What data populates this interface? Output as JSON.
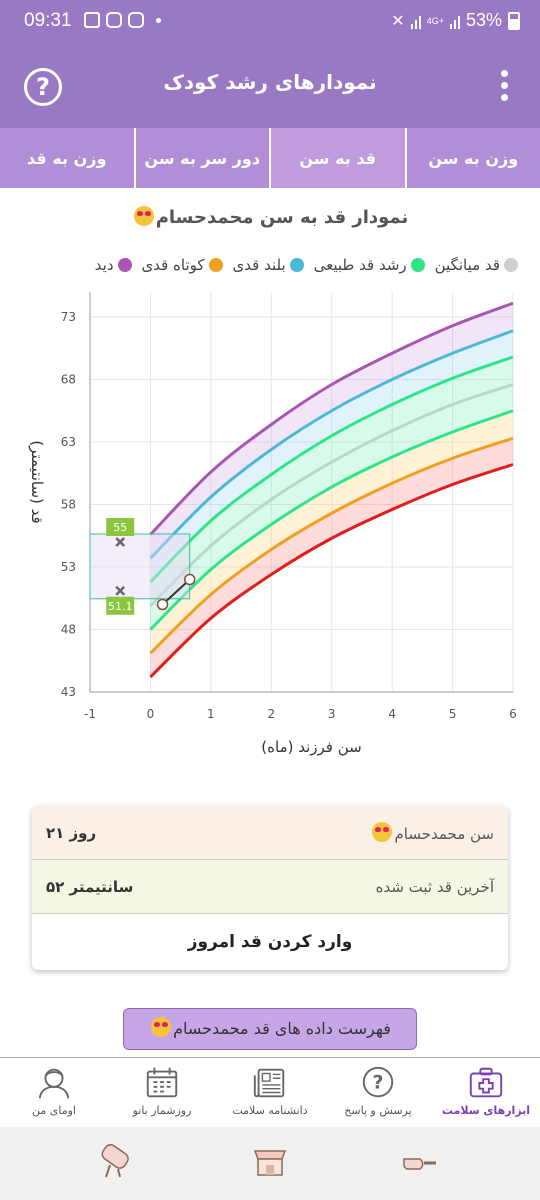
{
  "status": {
    "time": "09:31",
    "battery": "53%",
    "network": "4G+"
  },
  "appbar": {
    "title": "نمودارهای رشد کودک",
    "help_symbol": "?"
  },
  "tabs": [
    {
      "label": "وزن به سن"
    },
    {
      "label": "قد به سن",
      "active": true
    },
    {
      "label": "دور سر به سن"
    },
    {
      "label": "وزن به قد"
    }
  ],
  "chart_title": "نمودار قد به سن محمدحسام",
  "legend": [
    {
      "label": "دید",
      "color": "#a855b5"
    },
    {
      "label": "کوتاه قدی",
      "color": "#f0a020"
    },
    {
      "label": "بلند قدی",
      "color": "#4bb8d6"
    },
    {
      "label": "رشد قد طبیعی",
      "color": "#2ee58a"
    },
    {
      "label": "قد میانگین",
      "color": "#cfcfcf"
    }
  ],
  "chart_data": {
    "type": "line",
    "xlabel": "سن فرزند (ماه)",
    "ylabel": "قد (سانتیمتر)",
    "xlim": [
      -1,
      6
    ],
    "ylim": [
      43,
      75
    ],
    "xticks": [
      "-1",
      "0",
      "1",
      "2",
      "3",
      "4",
      "5",
      "6"
    ],
    "yticks": [
      "43",
      "48",
      "53",
      "58",
      "63",
      "68",
      "73"
    ],
    "x": [
      0,
      1,
      2,
      3,
      4,
      5,
      6
    ],
    "series": [
      {
        "color": "#a855b5",
        "values": [
          55.6,
          60.6,
          64.4,
          67.6,
          70.1,
          72.3,
          74.1
        ]
      },
      {
        "color": "#4bb8d6",
        "values": [
          53.7,
          58.6,
          62.4,
          65.5,
          68.0,
          70.1,
          71.9
        ]
      },
      {
        "color": "#2ee58a",
        "values": [
          51.8,
          56.7,
          60.4,
          63.5,
          66.0,
          68.1,
          69.8
        ]
      },
      {
        "color": "#b8d8c8",
        "values": [
          49.9,
          54.7,
          58.4,
          61.4,
          63.9,
          66.0,
          67.6
        ]
      },
      {
        "color": "#2ee58a",
        "values": [
          48.0,
          52.8,
          56.4,
          59.4,
          61.8,
          63.8,
          65.5
        ]
      },
      {
        "color": "#f0a020",
        "values": [
          46.1,
          50.8,
          54.4,
          57.3,
          59.7,
          61.7,
          63.3
        ]
      },
      {
        "color": "#e11d1d",
        "values": [
          44.2,
          48.9,
          52.4,
          55.3,
          57.6,
          59.6,
          61.2
        ]
      }
    ],
    "child_points": {
      "x": [
        0.2,
        0.65
      ],
      "y": [
        50.0,
        52.0
      ]
    },
    "markers": [
      {
        "x": -0.5,
        "y": 55,
        "label": "55"
      },
      {
        "x": -0.5,
        "y": 51.1,
        "label": "51.1"
      }
    ],
    "grid": true
  },
  "info": {
    "age_label": "سن محمدحسام",
    "age_value": "۲۱ روز",
    "height_label": "آخرین قد ثبت شده",
    "height_value": "۵۲ سانتیمتر",
    "action": "وارد کردن قد امروز"
  },
  "list_button": "فهرست داده های قد محمدحسام",
  "bottom_nav": [
    {
      "label": "ابزارهای سلامت",
      "icon": "medical-kit-icon",
      "active": true
    },
    {
      "label": "پرسش و پاسخ",
      "icon": "question-bubble-icon"
    },
    {
      "label": "دانشنامه سلامت",
      "icon": "newspaper-icon"
    },
    {
      "label": "روزشمار بانو",
      "icon": "calendar-icon"
    },
    {
      "label": "اومای من",
      "icon": "user-avatar-icon"
    }
  ]
}
